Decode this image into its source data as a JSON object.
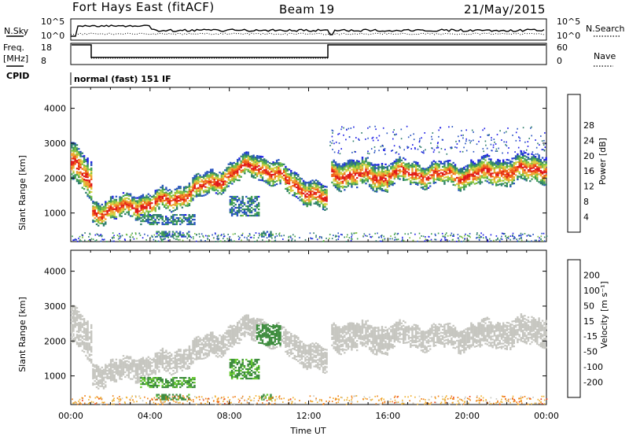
{
  "header": {
    "station": "Fort Hays East (fitACF)",
    "beam": "Beam 19",
    "date": "21/May/2015"
  },
  "panels": {
    "nsky": {
      "label": "N.Sky",
      "ticks": [
        "10^5",
        "10^0"
      ]
    },
    "nsearch": {
      "label": "N.Search",
      "ticks": [
        "10^5",
        "10^0"
      ]
    },
    "freq": {
      "label1": "Freq.",
      "label2": "[MHz]",
      "ticks": [
        "18",
        "8"
      ]
    },
    "nave": {
      "label": "Nave",
      "ticks": [
        "60",
        "0"
      ]
    },
    "cpid": {
      "label": "CPID",
      "value": "normal (fast) 151 IF"
    }
  },
  "chart_data": [
    {
      "type": "heatmap",
      "name": "power",
      "ylabel": "Slant Range [km]",
      "xlabel": "Time UT",
      "x_ticks": [
        "00:00",
        "04:00",
        "08:00",
        "12:00",
        "16:00",
        "20:00",
        "00:00"
      ],
      "y_ticks": [
        1000,
        2000,
        3000,
        4000
      ],
      "ylim": [
        180,
        4600
      ],
      "xlim_hours": [
        0,
        24
      ],
      "colorbar": {
        "label": "Power [dB]",
        "ticks": [
          "4",
          "8",
          "12",
          "16",
          "20",
          "24",
          "28"
        ],
        "colors": [
          "#1f1fe6",
          "#2a55c0",
          "#2f7e6c",
          "#40a050",
          "#7fc040",
          "#d8d040",
          "#f0a030",
          "#f06018",
          "#e01818"
        ]
      },
      "bands": [
        {
          "t0": 0.0,
          "t1": 1.0,
          "r0": 2700,
          "r1": 2050,
          "w": 700
        },
        {
          "t0": 1.0,
          "t1": 5.0,
          "r0": 1150,
          "r1": 1500,
          "w": 420
        },
        {
          "t0": 5.0,
          "t1": 9.3,
          "r0": 1500,
          "r1": 2550,
          "w": 420
        },
        {
          "t0": 9.3,
          "t1": 13.0,
          "r0": 2550,
          "r1": 1450,
          "w": 450
        },
        {
          "t0": 13.0,
          "t1": 16.0,
          "r0": 2300,
          "r1": 2200,
          "w": 500
        },
        {
          "t0": 16.0,
          "t1": 20.0,
          "r0": 2300,
          "r1": 2200,
          "w": 420
        },
        {
          "t0": 20.0,
          "t1": 24.0,
          "r0": 2250,
          "r1": 2450,
          "w": 480
        }
      ]
    },
    {
      "type": "heatmap",
      "name": "velocity",
      "ylabel": "Slant Range [km]",
      "xlabel": "Time UT",
      "x_ticks": [
        "00:00",
        "04:00",
        "08:00",
        "12:00",
        "16:00",
        "20:00",
        "00:00"
      ],
      "y_ticks": [
        1000,
        2000,
        3000,
        4000
      ],
      "ylim": [
        180,
        4600
      ],
      "colorbar": {
        "label": "Velocity [m s⁻¹]",
        "ticks": [
          "200",
          "100",
          "50",
          "15",
          "-15",
          "-50",
          "-100",
          "-200"
        ],
        "colors": [
          "#2030c0",
          "#2f6e6a",
          "#3d8c3d",
          "#66c830",
          "#c8c8c0",
          "#f0b030",
          "#f08018",
          "#f04018",
          "#e01010"
        ]
      },
      "ground_scatter_color": "#c6c6c0"
    }
  ],
  "footer": {
    "xlabel": "Time UT"
  }
}
